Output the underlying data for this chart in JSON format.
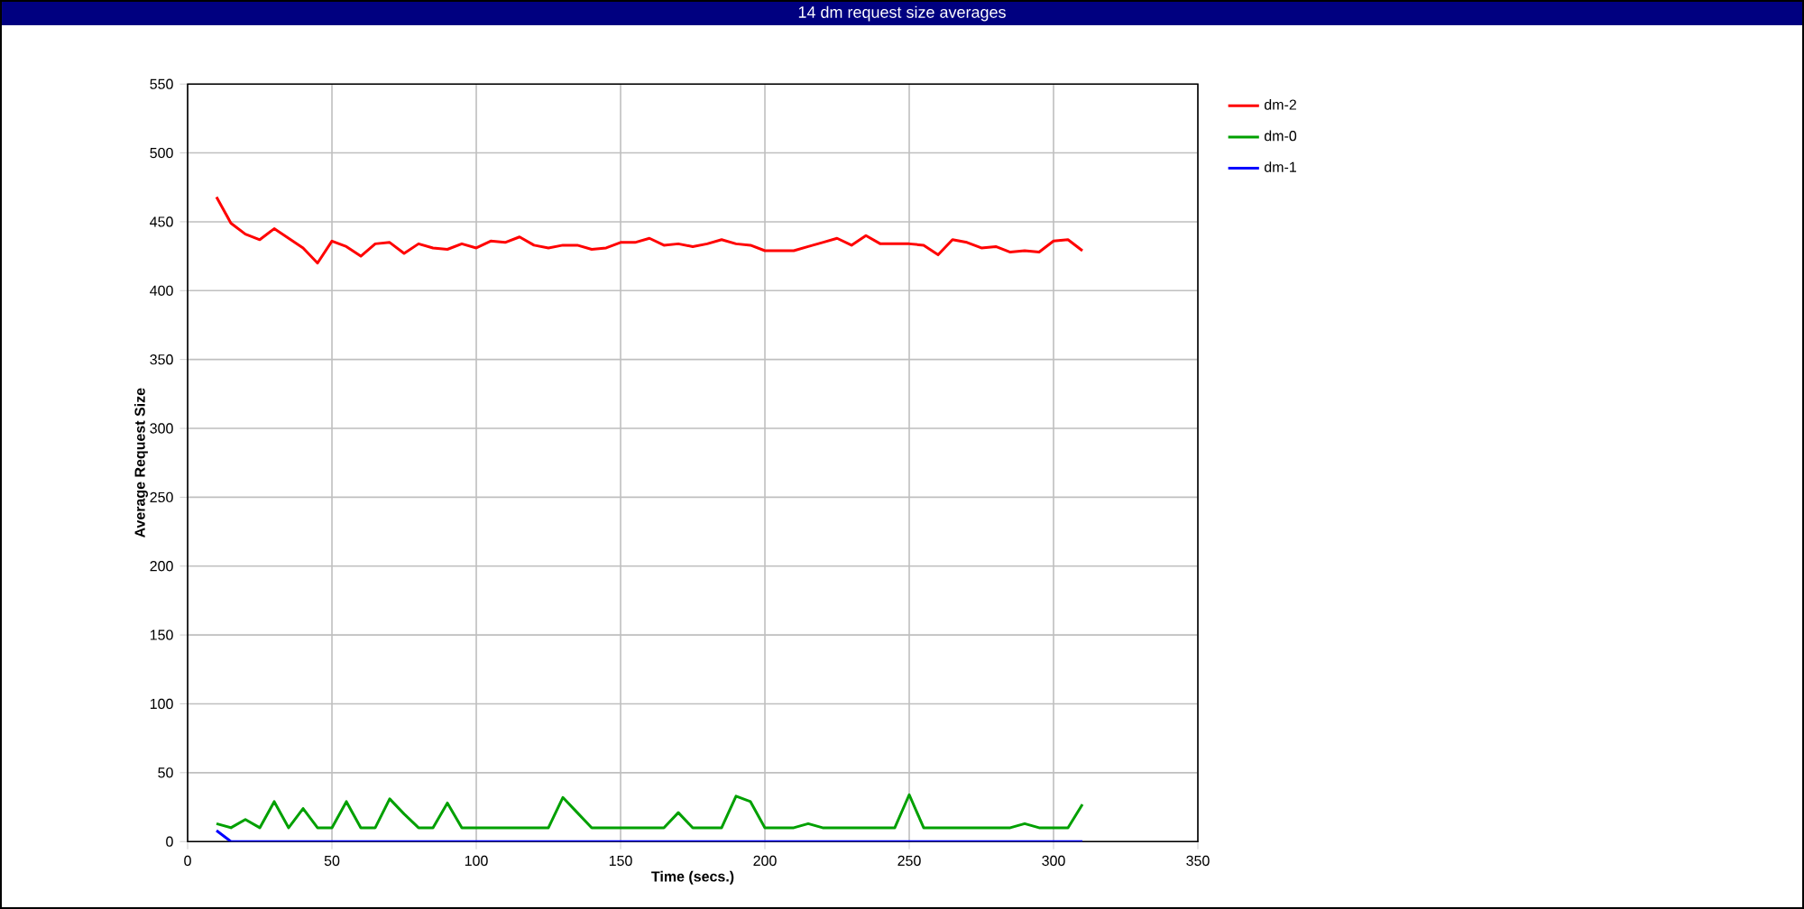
{
  "chart_data": {
    "type": "line",
    "title": "14 dm request size averages",
    "xlabel": "Time (secs.)",
    "ylabel": "Average Request Size",
    "x": [
      10,
      15,
      20,
      25,
      30,
      35,
      40,
      45,
      50,
      55,
      60,
      65,
      70,
      75,
      80,
      85,
      90,
      95,
      100,
      105,
      110,
      115,
      120,
      125,
      130,
      135,
      140,
      145,
      150,
      155,
      160,
      165,
      170,
      175,
      180,
      185,
      190,
      195,
      200,
      205,
      210,
      215,
      220,
      225,
      230,
      235,
      240,
      245,
      250,
      255,
      260,
      265,
      270,
      275,
      280,
      285,
      290,
      295,
      300,
      305,
      310
    ],
    "series": [
      {
        "name": "dm-2",
        "color": "#ff0000",
        "values": [
          468,
          449,
          441,
          437,
          445,
          438,
          431,
          420,
          436,
          432,
          425,
          434,
          435,
          427,
          434,
          431,
          430,
          434,
          431,
          436,
          435,
          439,
          433,
          431,
          433,
          433,
          430,
          431,
          435,
          435,
          438,
          433,
          434,
          432,
          434,
          437,
          434,
          433,
          429,
          429,
          429,
          432,
          435,
          438,
          433,
          440,
          434,
          434,
          434,
          433,
          426,
          437,
          435,
          431,
          432,
          428,
          429,
          428,
          436,
          437,
          429
        ]
      },
      {
        "name": "dm-0",
        "color": "#00a000",
        "values": [
          13,
          10,
          16,
          10,
          29,
          10,
          24,
          10,
          10,
          29,
          10,
          10,
          31,
          20,
          10,
          10,
          28,
          10,
          10,
          10,
          10,
          10,
          10,
          10,
          32,
          21,
          10,
          10,
          10,
          10,
          10,
          10,
          21,
          10,
          10,
          10,
          33,
          29,
          10,
          10,
          10,
          13,
          10,
          10,
          10,
          10,
          10,
          10,
          34,
          10,
          10,
          10,
          10,
          10,
          10,
          10,
          13,
          10,
          10,
          10,
          27
        ]
      },
      {
        "name": "dm-1",
        "color": "#0000ff",
        "values": [
          8,
          0,
          0,
          0,
          0,
          0,
          0,
          0,
          0,
          0,
          0,
          0,
          0,
          0,
          0,
          0,
          0,
          0,
          0,
          0,
          0,
          0,
          0,
          0,
          0,
          0,
          0,
          0,
          0,
          0,
          0,
          0,
          0,
          0,
          0,
          0,
          0,
          0,
          0,
          0,
          0,
          0,
          0,
          0,
          0,
          0,
          0,
          0,
          0,
          0,
          0,
          0,
          0,
          0,
          0,
          0,
          0,
          0,
          0,
          0,
          0
        ]
      }
    ],
    "xlim": [
      0,
      350
    ],
    "ylim": [
      0,
      550
    ],
    "xticks": [
      0,
      50,
      100,
      150,
      200,
      250,
      300,
      350
    ],
    "yticks": [
      0,
      50,
      100,
      150,
      200,
      250,
      300,
      350,
      400,
      450,
      500,
      550
    ],
    "grid": true,
    "legend": "top right",
    "marker": "none",
    "line_style": "solid"
  }
}
